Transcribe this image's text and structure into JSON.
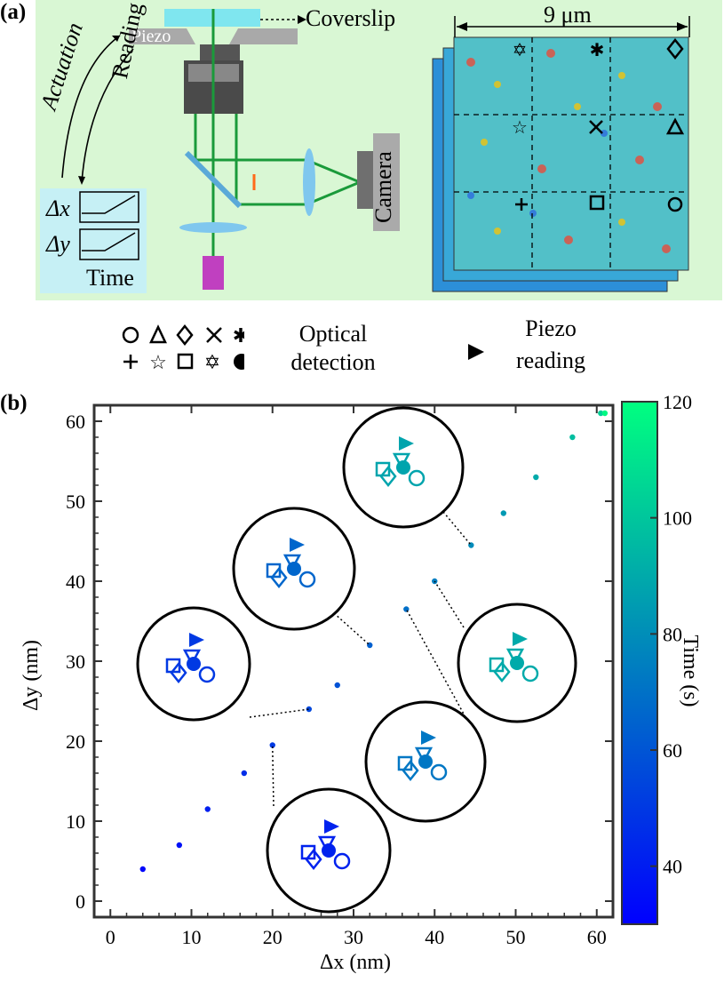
{
  "panel_a": {
    "label": "(a)",
    "piezo_label": "Piezo",
    "coverslip_label": "Coverslip",
    "actuation_label": "Actuation",
    "reading_label": "Reading",
    "camera_label": "Camera",
    "dx_label": "Δx",
    "dy_label": "Δy",
    "time_label": "Time",
    "scale_label": "9 μm",
    "bg_color": "#d9f7d4",
    "inset_color": "#c6f0f5"
  },
  "legend": {
    "optical_symbols": [
      "○",
      "△",
      "◇",
      "×",
      "✱",
      "+",
      "☆",
      "□",
      "✡",
      "●"
    ],
    "optical_label_line1": "Optical",
    "optical_label_line2": "detection",
    "piezo_symbol": "▶",
    "piezo_label_line1": "Piezo",
    "piezo_label_line2": "reading"
  },
  "panel_b": {
    "label": "(b)"
  },
  "chart_data": {
    "type": "scatter",
    "xlabel": "Δx (nm)",
    "ylabel": "Δy (nm)",
    "xlim": [
      -2,
      62
    ],
    "ylim": [
      -2,
      62
    ],
    "xticks": [
      0,
      10,
      20,
      30,
      40,
      50,
      60
    ],
    "yticks": [
      0,
      10,
      20,
      30,
      40,
      50,
      60
    ],
    "colorbar": {
      "label": "Time (s)",
      "range": [
        30,
        120
      ],
      "ticks": [
        40,
        60,
        80,
        100,
        120
      ],
      "colors": [
        "#0000ff",
        "#00ff80"
      ]
    },
    "trajectory": [
      {
        "x": 4,
        "y": 4,
        "t": 32
      },
      {
        "x": 8.5,
        "y": 7,
        "t": 36
      },
      {
        "x": 12,
        "y": 11.5,
        "t": 41
      },
      {
        "x": 16.5,
        "y": 16,
        "t": 46
      },
      {
        "x": 20,
        "y": 19.5,
        "t": 50
      },
      {
        "x": 24.5,
        "y": 24,
        "t": 55
      },
      {
        "x": 28,
        "y": 27,
        "t": 59
      },
      {
        "x": 32,
        "y": 32,
        "t": 64
      },
      {
        "x": 36.5,
        "y": 36.5,
        "t": 69
      },
      {
        "x": 40,
        "y": 40,
        "t": 74
      },
      {
        "x": 44.5,
        "y": 44.5,
        "t": 79
      },
      {
        "x": 48.5,
        "y": 48.5,
        "t": 84
      },
      {
        "x": 52.5,
        "y": 53,
        "t": 90
      },
      {
        "x": 57,
        "y": 58,
        "t": 97
      },
      {
        "x": 60.5,
        "y": 61,
        "t": 103
      },
      {
        "x": 61,
        "y": 61,
        "t": 118
      }
    ]
  }
}
